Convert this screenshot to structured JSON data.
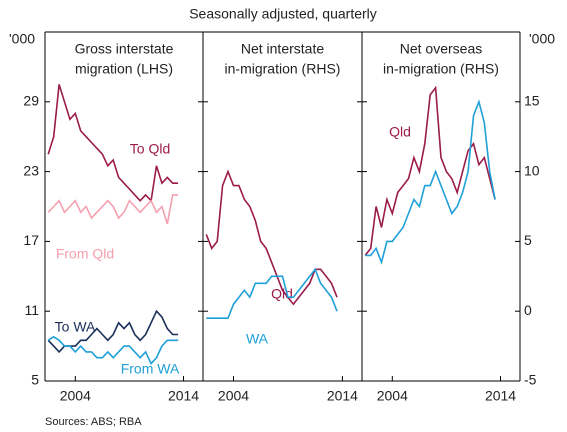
{
  "subtitle": "Seasonally adjusted, quarterly",
  "source": "Sources: ABS; RBA",
  "left_unit": "'000",
  "right_unit": "'000",
  "chart_data": [
    {
      "type": "line",
      "title": [
        "Gross interstate",
        "migration (LHS)"
      ],
      "x": [
        2001.5,
        2002,
        2002.5,
        2003,
        2003.5,
        2004,
        2004.5,
        2005,
        2005.5,
        2006,
        2006.5,
        2007,
        2007.5,
        2008,
        2008.5,
        2009,
        2009.5,
        2010,
        2010.5,
        2011,
        2011.5,
        2012,
        2012.5,
        2013,
        2013.5
      ],
      "xlim": [
        2001.2,
        2015.8
      ],
      "xticks": [
        2004,
        2014
      ],
      "ylim": [
        5,
        35
      ],
      "yticks": [
        5,
        11,
        17,
        23,
        29
      ],
      "series": [
        {
          "name": "To Qld",
          "color": "#9b1b4a",
          "values": [
            24.5,
            26,
            30.5,
            29,
            27.5,
            28,
            26.5,
            26,
            25.5,
            25,
            24.5,
            23.5,
            24,
            22.5,
            22,
            21.5,
            21,
            20.5,
            21,
            20.5,
            23.5,
            22,
            22.5,
            22,
            22
          ]
        },
        {
          "name": "From Qld",
          "color": "#f4a0ae",
          "values": [
            19.5,
            20,
            20.5,
            19.5,
            20,
            20.5,
            19.5,
            20,
            19,
            19.5,
            20,
            20.5,
            20,
            19,
            19.5,
            20.5,
            20,
            19.5,
            20,
            20.5,
            19.5,
            20,
            18.5,
            21,
            21
          ]
        },
        {
          "name": "To WA",
          "color": "#1a2f5a",
          "values": [
            8.5,
            8,
            7.5,
            8,
            8,
            8,
            8.5,
            8.5,
            9,
            9.5,
            9,
            8.5,
            9,
            10,
            9.5,
            10,
            9,
            8.5,
            9,
            10,
            11,
            10.5,
            9.5,
            9,
            9
          ]
        },
        {
          "name": "From WA",
          "color": "#1fa0d8",
          "values": [
            8.5,
            8.8,
            8.5,
            8,
            8,
            7.5,
            8,
            7.5,
            7.5,
            7,
            7,
            7.5,
            7,
            7.5,
            8,
            8,
            7.5,
            7,
            7.5,
            6.5,
            7,
            8,
            8.5,
            8.5,
            8.5
          ]
        }
      ]
    },
    {
      "type": "line",
      "title": [
        "Net interstate",
        "in-migration (RHS)"
      ],
      "x": [
        2001.5,
        2002,
        2002.5,
        2003,
        2003.5,
        2004,
        2004.5,
        2005,
        2005.5,
        2006,
        2006.5,
        2007,
        2007.5,
        2008,
        2008.5,
        2009,
        2009.5,
        2010,
        2010.5,
        2011,
        2011.5,
        2012,
        2012.5,
        2013,
        2013.5
      ],
      "xlim": [
        2001.2,
        2015.8
      ],
      "xticks": [
        2004,
        2014
      ],
      "ylim": [
        -5,
        20
      ],
      "yticks": [
        -5,
        0,
        5,
        10,
        15
      ],
      "series": [
        {
          "name": "Qld",
          "color": "#9b1b4a",
          "values": [
            5.5,
            4.5,
            5,
            9,
            10,
            9,
            9,
            8,
            7.5,
            6.5,
            5,
            4.5,
            3.5,
            2.5,
            1.5,
            1,
            0.5,
            1,
            1.5,
            2,
            3,
            3,
            2.5,
            2,
            1
          ]
        },
        {
          "name": "WA",
          "color": "#1fa0d8",
          "values": [
            -0.5,
            -0.5,
            -0.5,
            -0.5,
            -0.5,
            0.5,
            1,
            1.5,
            1,
            2,
            2,
            2,
            2.5,
            2.5,
            2.5,
            1,
            1,
            1.5,
            2,
            2.5,
            3,
            2,
            1.5,
            1,
            0
          ]
        }
      ]
    },
    {
      "type": "line",
      "title": [
        "Net overseas",
        "in-migration (RHS)"
      ],
      "x": [
        2001.5,
        2002,
        2002.5,
        2003,
        2003.5,
        2004,
        2004.5,
        2005,
        2005.5,
        2006,
        2006.5,
        2007,
        2007.5,
        2008,
        2008.5,
        2009,
        2009.5,
        2010,
        2010.5,
        2011,
        2011.5,
        2012,
        2012.5,
        2013,
        2013.5
      ],
      "xlim": [
        2001.2,
        2015.8
      ],
      "xticks": [
        2004,
        2014
      ],
      "ylim": [
        -5,
        20
      ],
      "yticks": [
        -5,
        0,
        5,
        10,
        15
      ],
      "series": [
        {
          "name": "Qld",
          "color": "#9b1b4a",
          "values": [
            4,
            4.5,
            7.5,
            6,
            8,
            7,
            8.5,
            9,
            9.5,
            11,
            10,
            12,
            15.5,
            16,
            11,
            10,
            9.5,
            8.5,
            10,
            11.5,
            12,
            10.5,
            11,
            9.5,
            8
          ]
        },
        {
          "name": "WA",
          "color": "#1fa0d8",
          "values": [
            4,
            4,
            4.5,
            3.5,
            5,
            5,
            5.5,
            6,
            7,
            8,
            7.5,
            9,
            9,
            10,
            9,
            8,
            7,
            7.5,
            8.5,
            10,
            14,
            15,
            13.5,
            10,
            8
          ]
        }
      ]
    }
  ]
}
